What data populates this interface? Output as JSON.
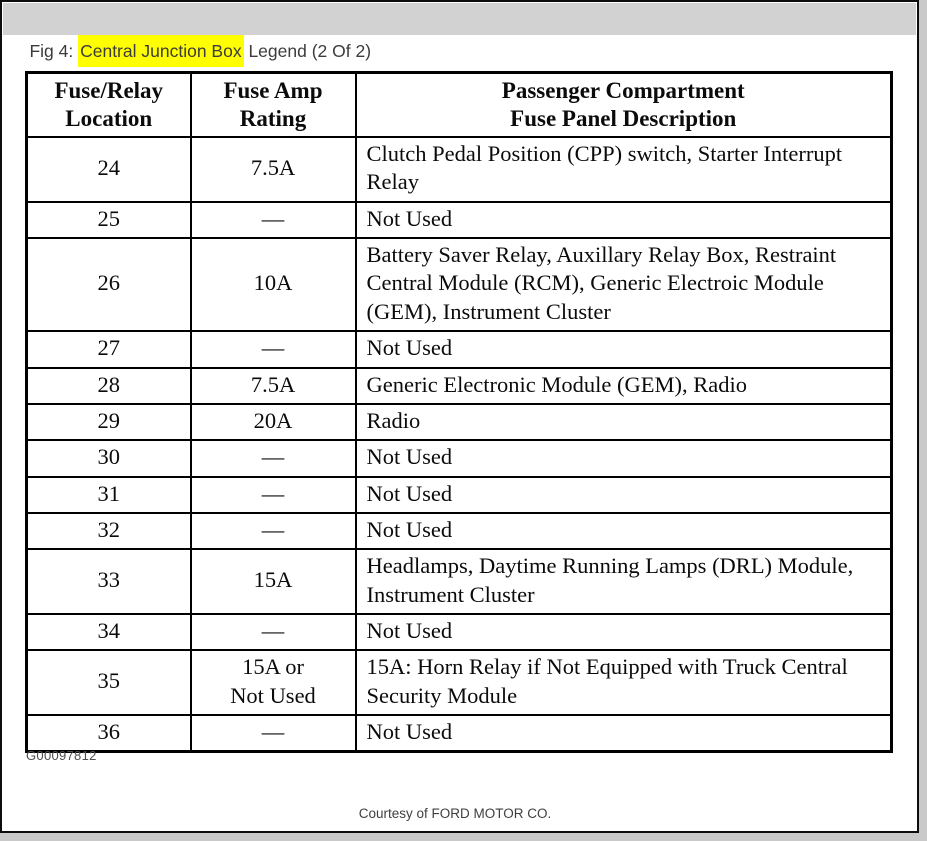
{
  "header": {
    "prefix": "Fig 4: ",
    "highlight": "Central Junction Box",
    "suffix": " Legend (2 Of 2)"
  },
  "table": {
    "headers": [
      "Fuse/Relay\nLocation",
      "Fuse Amp\nRating",
      "Passenger Compartment\nFuse Panel Description"
    ],
    "rows": [
      {
        "location": "24",
        "rating": "7.5A",
        "description": "Clutch Pedal Position (CPP) switch, Starter Interrupt Relay"
      },
      {
        "location": "25",
        "rating": "—",
        "description": "Not Used"
      },
      {
        "location": "26",
        "rating": "10A",
        "description": "Battery Saver Relay, Auxillary Relay Box, Restraint Central Module (RCM), Generic Electroic Module (GEM), Instrument Cluster"
      },
      {
        "location": "27",
        "rating": "—",
        "description": "Not Used"
      },
      {
        "location": "28",
        "rating": "7.5A",
        "description": "Generic Electronic Module (GEM), Radio"
      },
      {
        "location": "29",
        "rating": "20A",
        "description": "Radio"
      },
      {
        "location": "30",
        "rating": "—",
        "description": "Not Used"
      },
      {
        "location": "31",
        "rating": "—",
        "description": "Not Used"
      },
      {
        "location": "32",
        "rating": "—",
        "description": "Not Used"
      },
      {
        "location": "33",
        "rating": "15A",
        "description": "Headlamps, Daytime Running Lamps (DRL) Module, Instrument Cluster"
      },
      {
        "location": "34",
        "rating": "—",
        "description": "Not Used"
      },
      {
        "location": "35",
        "rating": "15A or\nNot Used",
        "description": "15A: Horn Relay if Not Equipped with Truck Central Security Module"
      },
      {
        "location": "36",
        "rating": "—",
        "description": "Not Used"
      }
    ]
  },
  "footer": {
    "figure_code": "G00097812",
    "courtesy": "Courtesy of FORD MOTOR CO."
  },
  "colors": {
    "title_bar_bg": "#d2d2d2",
    "highlight_bg": "#ffff00",
    "title_text": "#3c3c3c",
    "table_border": "#000000",
    "footer_text": "#4e4e4e"
  }
}
